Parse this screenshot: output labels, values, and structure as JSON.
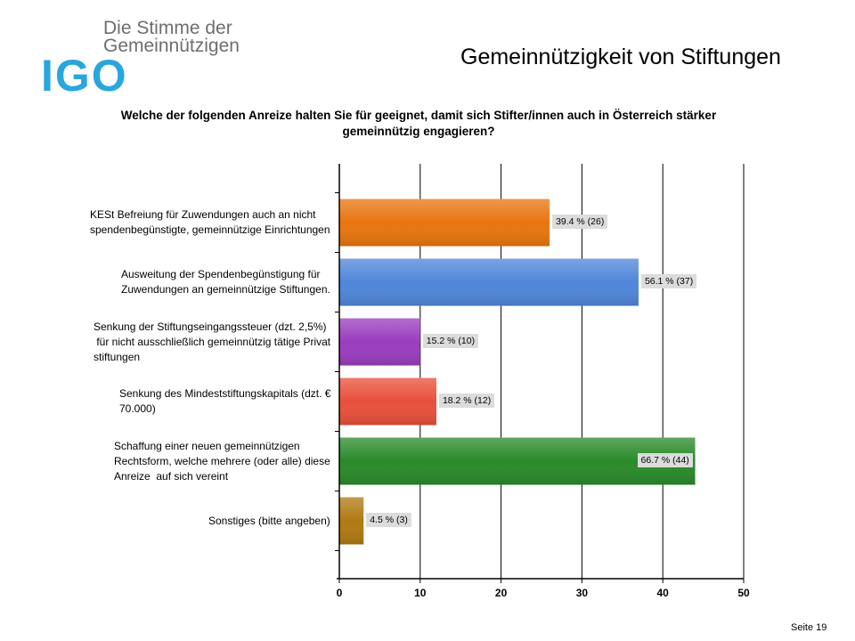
{
  "logo": {
    "line1": "Die Stimme der",
    "line2": "Gemeinnützigen",
    "mark": "IGO",
    "color": "#2aa6df"
  },
  "slide_title": "Gemeinnützigkeit von Stiftungen",
  "question": "Welche der folgenden Anreize halten Sie für geeignet, damit sich Stifter/innen auch in Österreich stärker gemeinnützig engagieren?",
  "page_number": "Seite 19",
  "chart_data": {
    "type": "bar",
    "orientation": "horizontal",
    "categories": [
      [
        "KESt Befreiung für Zuwendungen auch an nicht",
        "spendenbegünstigte, gemeinnützige Einrichtungen"
      ],
      [
        "Ausweitung der Spendenbegünstigung für",
        "Zuwendungen an gemeinnützige Stiftungen."
      ],
      [
        "Senkung der Stiftungseingangssteuer (dzt. 2,5%)",
        " für nicht ausschließlich gemeinnützig tätige Privat",
        "stiftungen"
      ],
      [
        "Senkung des Mindeststiftungskapitals (dzt. €",
        "70.000)"
      ],
      [
        "Schaffung einer neuen gemeinnützigen",
        "Rechtsform, welche mehrere (oder alle) diese",
        "Anreize  auf sich vereint"
      ],
      [
        "Sonstiges (bitte angeben)"
      ]
    ],
    "values": [
      26,
      37,
      10,
      12,
      44,
      3
    ],
    "value_labels": [
      "39.4 % (26)",
      "56.1 % (37)",
      "15.2 % (10)",
      "18.2 % (12)",
      "66.7 % (44)",
      "4.5 % (3)"
    ],
    "colors": [
      "#e8750f",
      "#4f86d9",
      "#9a3dbf",
      "#e8503a",
      "#2a8a2a",
      "#b07a12"
    ],
    "xlim": [
      0,
      50
    ],
    "xticks": [
      "0",
      "10",
      "20",
      "30",
      "40",
      "50"
    ],
    "grid": true
  }
}
